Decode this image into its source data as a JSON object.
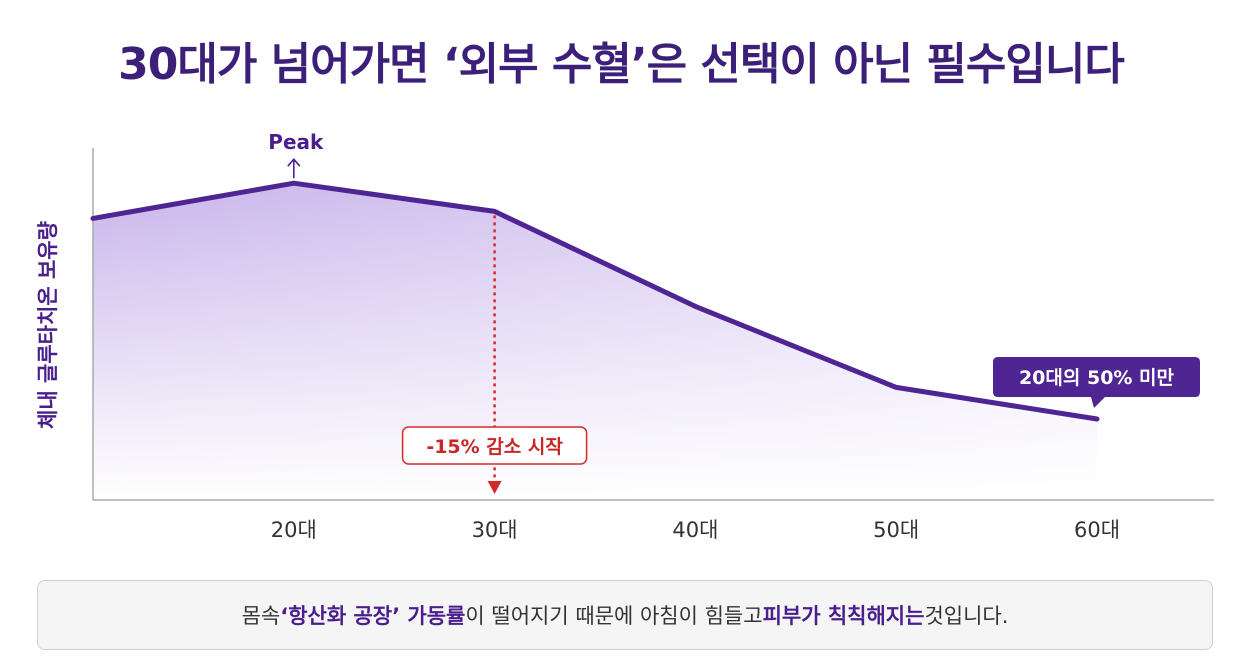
{
  "title": "30대가 넘어가면 ‘외부 수혈’은 선택이 아닌 필수입니다",
  "chart_data": {
    "type": "area",
    "x": [
      "",
      "20대",
      "30대",
      "40대",
      "50대",
      "60대"
    ],
    "xticks": [
      "20대",
      "30대",
      "40대",
      "50대",
      "60대"
    ],
    "values": [
      80,
      90,
      82,
      55,
      32,
      23
    ],
    "ylim": [
      0,
      100
    ],
    "ylabel": "체내 글루타치온 보유량",
    "xlabel": "",
    "grid": false,
    "colors": {
      "line": "#4f2493",
      "fill_top": "#c5b0ea",
      "marker": "#d42a2a",
      "axis": "#aaaaaa"
    },
    "annotations": {
      "peak": "Peak",
      "decline": "-15% 감소 시작",
      "end": "20대의 50% 미만"
    }
  },
  "footer": {
    "p1": "몸속 ",
    "p2": "‘항산화 공장’ 가동률",
    "p3": "이 떨어지기 때문에 아침이 힘들고 ",
    "p4": "피부가 칙칙해지는",
    "p5": " 것입니다."
  }
}
